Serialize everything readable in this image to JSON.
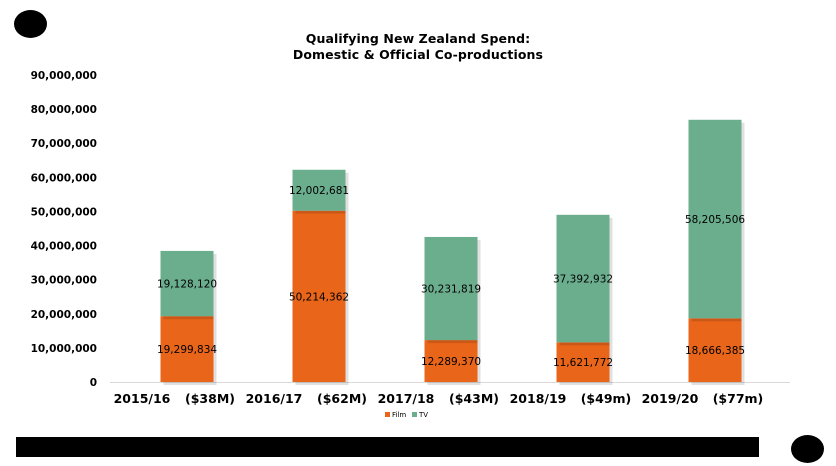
{
  "colors": {
    "film": "#E8651A",
    "tv": "#6BAE8E",
    "axis": "#d9d9d9"
  },
  "chart_data": {
    "type": "bar",
    "stacked": true,
    "title": "Qualifying New Zealand Spend:",
    "subtitle": "Domestic & Official Co-productions",
    "categories": [
      "2015/16",
      "2016/17",
      "2017/18",
      "2018/19",
      "2019/20"
    ],
    "category_totals": [
      "($38M)",
      "($62M)",
      "($43M)",
      "($49m)",
      "($77m)"
    ],
    "series": [
      {
        "name": "Film",
        "values": [
          19299834,
          50214362,
          12289370,
          11621772,
          18666385
        ],
        "labels": [
          "19,299,834",
          "50,214,362",
          "12,289,370",
          "11,621,772",
          "18,666,385"
        ]
      },
      {
        "name": "TV",
        "values": [
          19128120,
          12002681,
          30231819,
          37392932,
          58205506
        ],
        "labels": [
          "19,128,120",
          "12,002,681",
          "30,231,819",
          "37,392,932",
          "58,205,506"
        ]
      }
    ],
    "ylim": [
      0,
      90000000
    ],
    "yticks": [
      0,
      10000000,
      20000000,
      30000000,
      40000000,
      50000000,
      60000000,
      70000000,
      80000000,
      90000000
    ],
    "ytick_labels": [
      "0",
      "10,000,000",
      "20,000,000",
      "30,000,000",
      "40,000,000",
      "50,000,000",
      "60,000,000",
      "70,000,000",
      "80,000,000",
      "90,000,000"
    ],
    "grid": false,
    "legend_position": "bottom"
  }
}
